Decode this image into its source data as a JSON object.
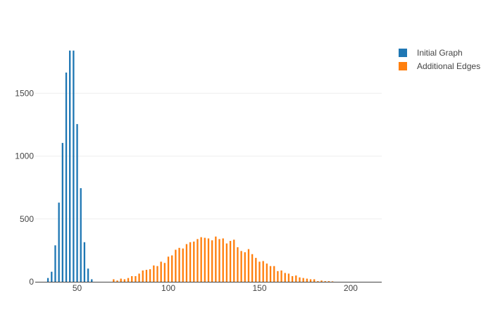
{
  "chart_data": {
    "type": "bar",
    "title": "",
    "xlabel": "",
    "ylabel": "",
    "xlim": [
      27,
      217
    ],
    "ylim": [
      0,
      1850
    ],
    "x_ticks": [
      50,
      100,
      150,
      200
    ],
    "y_ticks": [
      0,
      500,
      1000,
      1500
    ],
    "grid": "horizontal",
    "legend_position": "top-right",
    "series": [
      {
        "name": "Initial Graph",
        "color": "#1f77b4",
        "x": [
          34,
          36,
          38,
          40,
          42,
          44,
          46,
          48,
          50,
          52,
          54,
          56,
          58
        ],
        "values": [
          30,
          80,
          290,
          630,
          1105,
          1665,
          1840,
          1840,
          1255,
          745,
          315,
          105,
          20
        ]
      },
      {
        "name": "Additional Edges",
        "color": "#ff7f0e",
        "x": [
          70,
          72,
          74,
          76,
          78,
          80,
          82,
          84,
          86,
          88,
          90,
          92,
          94,
          96,
          98,
          100,
          102,
          104,
          106,
          108,
          110,
          112,
          114,
          116,
          118,
          120,
          122,
          124,
          126,
          128,
          130,
          132,
          134,
          136,
          138,
          140,
          142,
          144,
          146,
          148,
          150,
          152,
          154,
          156,
          158,
          160,
          162,
          164,
          166,
          168,
          170,
          172,
          174,
          176,
          178,
          180,
          182,
          184,
          186,
          188,
          190
        ],
        "values": [
          20,
          10,
          25,
          20,
          30,
          45,
          45,
          65,
          90,
          95,
          100,
          130,
          125,
          160,
          150,
          200,
          210,
          255,
          270,
          265,
          300,
          315,
          320,
          340,
          355,
          350,
          345,
          330,
          360,
          340,
          345,
          305,
          325,
          335,
          275,
          245,
          235,
          260,
          220,
          190,
          160,
          165,
          145,
          125,
          125,
          85,
          90,
          70,
          65,
          45,
          50,
          35,
          30,
          25,
          20,
          20,
          5,
          10,
          5,
          5,
          3
        ]
      }
    ]
  }
}
